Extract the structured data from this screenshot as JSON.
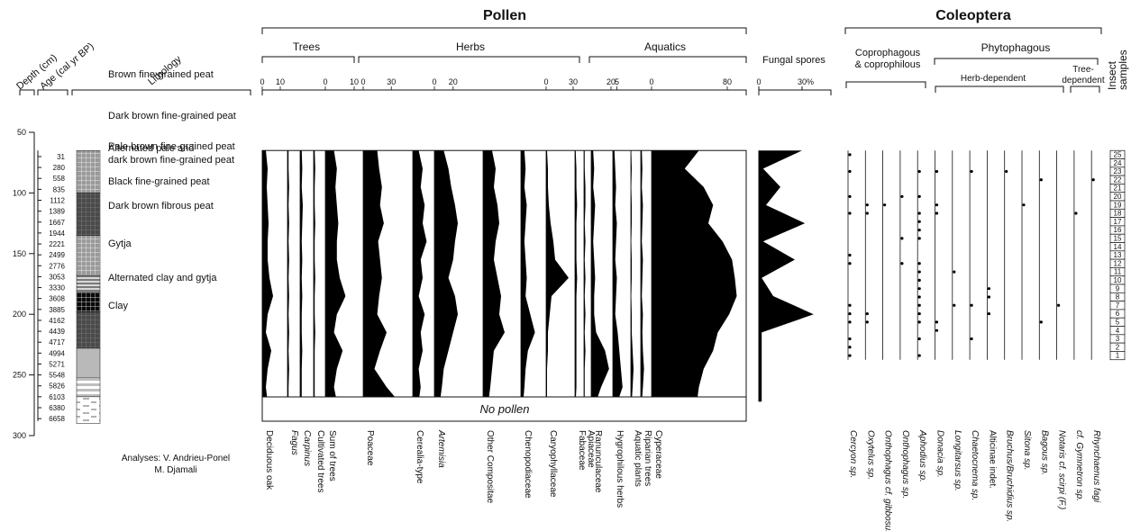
{
  "headers": {
    "pollen": "Pollen",
    "coleoptera": "Coleoptera",
    "trees": "Trees",
    "herbs": "Herbs",
    "aquatics": "Aquatics",
    "fungal": "Fungal spores",
    "coprophagous": "Coprophagous",
    "coprophilous": "& coprophilous",
    "phytophagous": "Phytophagous",
    "herb_dependent": "Herb-dependent",
    "tree_dependent_1": "Tree-",
    "tree_dependent_2": "dependent",
    "insect_1": "Insect",
    "insect_2": "samples",
    "depth": "Depth (cm)",
    "age": "Age (cal yr BP)",
    "lithology": "Lithology",
    "no_pollen": "No pollen",
    "analyses_1": "Analyses: V. Andrieu-Ponel",
    "analyses_2": "M. Djamali"
  },
  "chart_data": {
    "type": "area",
    "title": "",
    "ylabel": "Depth (cm)",
    "ylim": [
      50,
      300
    ],
    "depth_ticks": [
      50,
      100,
      150,
      200,
      250,
      300
    ],
    "pollen_depth_range": [
      65,
      272
    ],
    "age_depths": [
      70,
      79,
      88,
      97,
      106,
      115,
      124,
      133,
      142,
      151,
      160,
      169,
      178,
      187,
      196,
      205,
      214,
      223,
      232,
      241,
      250,
      259,
      268,
      277,
      286
    ],
    "ages": [
      "31",
      "280",
      "558",
      "835",
      "1112",
      "1389",
      "1667",
      "1944",
      "2221",
      "2499",
      "2776",
      "3053",
      "3330",
      "3608",
      "3885",
      "4162",
      "4439",
      "4717",
      "4994",
      "5271",
      "5548",
      "5826",
      "6103",
      "6380",
      "6658"
    ],
    "lithology": [
      {
        "label": "Brown fine-grained peat",
        "top": 65,
        "bottom": 100,
        "pattern": "grid-light"
      },
      {
        "label": "Dark brown fine-grained peat",
        "top": 100,
        "bottom": 135,
        "pattern": "grid-dark"
      },
      {
        "label": "Pale brown fine-grained peat",
        "top": 135,
        "bottom": 168,
        "pattern": "grid-light"
      },
      {
        "label": "Alternated pale and dark brown fine-grained peat",
        "top": 168,
        "bottom": 182,
        "pattern": "alternating"
      },
      {
        "label": "Black fine-grained peat",
        "top": 182,
        "bottom": 198,
        "pattern": "grid-black"
      },
      {
        "label": "Dark brown fibrous peat",
        "top": 198,
        "bottom": 228,
        "pattern": "grid-dark"
      },
      {
        "label": "Gytja",
        "top": 228,
        "bottom": 252,
        "pattern": "grey"
      },
      {
        "label": "Alternated clay and gytja",
        "top": 252,
        "bottom": 268,
        "pattern": "clay-gytja"
      },
      {
        "label": "Clay",
        "top": 268,
        "bottom": 290,
        "pattern": "clay"
      }
    ],
    "profile_depths": [
      65,
      80,
      95,
      110,
      125,
      140,
      155,
      170,
      185,
      200,
      215,
      230,
      245,
      260,
      272
    ],
    "pollen_taxa": [
      {
        "name": "Deciduous oak",
        "italic": false,
        "scale_ticks": [
          "0",
          "10"
        ],
        "scale_max": 10,
        "max": 10,
        "values": [
          2,
          3,
          2.5,
          3,
          3.5,
          3,
          3,
          4,
          6,
          3,
          2,
          5,
          3,
          2,
          3
        ]
      },
      {
        "name": "Fagus",
        "italic": true,
        "scale_ticks": [],
        "scale_max": 0,
        "max": 1,
        "values": [
          0.2,
          0.2,
          0.3,
          0.2,
          0.3,
          0.2,
          0.3,
          0.2,
          0.3,
          0.2,
          0.3,
          0.2,
          0.3,
          0.2,
          0.2
        ]
      },
      {
        "name": "Carpinus",
        "italic": true,
        "scale_ticks": [],
        "scale_max": 0,
        "max": 1,
        "values": [
          0.3,
          0.4,
          0.3,
          0.5,
          0.4,
          0.3,
          0.4,
          0.3,
          0.4,
          0.3,
          0.3,
          0.4,
          0.3,
          0.3,
          0.3
        ]
      },
      {
        "name": "Cultivated trees",
        "italic": false,
        "scale_ticks": [],
        "scale_max": 0,
        "max": 1,
        "values": [
          0.2,
          0.3,
          0.2,
          0.2,
          0.3,
          0.2,
          0.2,
          0.3,
          0.2,
          0.2,
          0.3,
          0.2,
          0.2,
          0.2,
          0.2
        ]
      },
      {
        "name": "Sum of trees",
        "italic": false,
        "scale_ticks": [
          "0",
          "10"
        ],
        "scale_max": 10,
        "max": 10,
        "values": [
          3,
          4,
          3.5,
          4,
          4.5,
          4,
          4,
          5,
          7,
          4,
          3,
          6,
          4,
          3,
          4
        ]
      },
      {
        "name": "Poaceae",
        "italic": false,
        "scale_ticks": [
          "0",
          "30"
        ],
        "scale_max": 30,
        "max": 50,
        "values": [
          15,
          17,
          20,
          18,
          22,
          16,
          18,
          20,
          17,
          15,
          25,
          18,
          12,
          25,
          38
        ]
      },
      {
        "name": "Cerealia-type",
        "italic": false,
        "scale_ticks": [],
        "scale_max": 0,
        "max": 10,
        "values": [
          3,
          5,
          4,
          6,
          5,
          7,
          4,
          5,
          3,
          6,
          4,
          5,
          3,
          4,
          3
        ]
      },
      {
        "name": "Artemisia",
        "italic": true,
        "scale_ticks": [
          "0",
          "20"
        ],
        "scale_max": 20,
        "max": 50,
        "values": [
          10,
          15,
          18,
          22,
          25,
          22,
          20,
          15,
          22,
          25,
          20,
          15,
          10,
          8,
          6
        ]
      },
      {
        "name": "Other Compositae",
        "italic": false,
        "scale_ticks": [],
        "scale_max": 0,
        "max": 20,
        "values": [
          5,
          7,
          6,
          8,
          9,
          7,
          6,
          8,
          10,
          9,
          12,
          6,
          5,
          4,
          3
        ]
      },
      {
        "name": "Chenopodiaceae",
        "italic": false,
        "scale_ticks": [],
        "scale_max": 0,
        "max": 20,
        "values": [
          3,
          4,
          3,
          5,
          4,
          3,
          4,
          5,
          4,
          8,
          12,
          6,
          4,
          3,
          2
        ]
      },
      {
        "name": "Caryophyllaceae",
        "italic": false,
        "scale_ticks": [
          "0",
          "30"
        ],
        "scale_max": 30,
        "max": 30,
        "values": [
          1,
          2,
          2,
          3,
          5,
          8,
          10,
          25,
          6,
          4,
          2,
          2,
          1,
          1,
          1
        ]
      },
      {
        "name": "Fabaceae",
        "italic": false,
        "scale_ticks": [],
        "scale_max": 0,
        "max": 5,
        "values": [
          0.5,
          1,
          1,
          1.5,
          1,
          1,
          1,
          1.5,
          1,
          1,
          1,
          1,
          1,
          1,
          0.5
        ]
      },
      {
        "name": "Apiaceae",
        "italic": false,
        "scale_ticks": [],
        "scale_max": 0,
        "max": 5,
        "values": [
          0.5,
          0.5,
          1,
          1,
          0.5,
          1,
          0.5,
          1,
          0.5,
          1,
          0.5,
          1,
          0.5,
          0.5,
          0.5
        ]
      },
      {
        "name": "Ranunculaceae",
        "italic": false,
        "scale_ticks": [
          "20"
        ],
        "scale_max": 20,
        "max": 20,
        "values": [
          2,
          3,
          2,
          4,
          3,
          2,
          3,
          4,
          3,
          3,
          5,
          14,
          18,
          10,
          5
        ]
      },
      {
        "name": "Hygrophilous herbs",
        "italic": false,
        "scale_ticks": [
          "5"
        ],
        "scale_max": 5,
        "max": 20,
        "values": [
          2,
          3,
          4,
          3,
          5,
          4,
          3,
          5,
          4,
          3,
          6,
          8,
          10,
          12,
          6
        ]
      },
      {
        "name": "Aquatic plants",
        "italic": false,
        "scale_ticks": [],
        "scale_max": 0,
        "max": 10,
        "values": [
          0.5,
          1,
          0.5,
          1,
          1,
          0.5,
          1,
          1,
          0.5,
          1,
          1,
          2,
          3,
          2,
          1
        ]
      },
      {
        "name": "Riparian trees",
        "italic": false,
        "scale_ticks": [],
        "scale_max": 0,
        "max": 10,
        "values": [
          1,
          1.5,
          1,
          2,
          1.5,
          1,
          2,
          1.5,
          1,
          2,
          1.5,
          2,
          3,
          2,
          1
        ]
      },
      {
        "name": "Cyperaceae",
        "italic": false,
        "scale_ticks": [
          "0",
          "80"
        ],
        "scale_max": 80,
        "max": 100,
        "values": [
          50,
          35,
          55,
          65,
          60,
          75,
          85,
          88,
          90,
          82,
          70,
          65,
          55,
          50,
          48
        ]
      }
    ],
    "fungal_spores": {
      "name": "Fungal spores",
      "scale_ticks": [
        "0",
        "30%"
      ],
      "scale_max": 30,
      "max": 50,
      "values": [
        30,
        3,
        15,
        5,
        32,
        3,
        25,
        2,
        10,
        38,
        2,
        2,
        2,
        2,
        2
      ]
    },
    "coleoptera_taxa": [
      {
        "name": "Cercyon sp.",
        "italic": true
      },
      {
        "name": "Oxytelus sp.",
        "italic": true
      },
      {
        "name": "Onthophagus cf. gibbosus",
        "italic": true
      },
      {
        "name": "Onthophagus sp.",
        "italic": true
      },
      {
        "name": "Aphodius sp.",
        "italic": true
      },
      {
        "name": "Donacia sp.",
        "italic": true
      },
      {
        "name": "Longitarsus sp.",
        "italic": true
      },
      {
        "name": "Chaetocnema sp.",
        "italic": true
      },
      {
        "name": "Alticinae indet.",
        "italic": false
      },
      {
        "name": "Bruchus/Bruchidius sp.",
        "italic": true
      },
      {
        "name": "Sitona sp.",
        "italic": true
      },
      {
        "name": "Bagous sp.",
        "italic": true
      },
      {
        "name": "Notaris cf. scirpi (F.)",
        "italic": true
      },
      {
        "name": "cf. Gymnetron sp.",
        "italic": true
      },
      {
        "name": "Rhynchaenus fagi",
        "italic": true
      }
    ],
    "insect_samples": [
      "25",
      "24",
      "23",
      "22",
      "21",
      "20",
      "19",
      "18",
      "17",
      "16",
      "15",
      "14",
      "13",
      "12",
      "11",
      "10",
      "9",
      "8",
      "7",
      "6",
      "5",
      "4",
      "3",
      "2",
      "1"
    ],
    "coleoptera_occurrences": [
      [
        25,
        0
      ],
      [
        23,
        0
      ],
      [
        23,
        4
      ],
      [
        23,
        5
      ],
      [
        23,
        7
      ],
      [
        23,
        9
      ],
      [
        22,
        11
      ],
      [
        22,
        14
      ],
      [
        20,
        0
      ],
      [
        20,
        3
      ],
      [
        20,
        4
      ],
      [
        19,
        1
      ],
      [
        19,
        2
      ],
      [
        19,
        5
      ],
      [
        19,
        10
      ],
      [
        18,
        0
      ],
      [
        18,
        1
      ],
      [
        18,
        4
      ],
      [
        18,
        5
      ],
      [
        18,
        13
      ],
      [
        17,
        4
      ],
      [
        16,
        4
      ],
      [
        15,
        3
      ],
      [
        15,
        4
      ],
      [
        13,
        0
      ],
      [
        12,
        0
      ],
      [
        12,
        3
      ],
      [
        12,
        4
      ],
      [
        11,
        6
      ],
      [
        11,
        4
      ],
      [
        10,
        4
      ],
      [
        9,
        4
      ],
      [
        9,
        8
      ],
      [
        8,
        4
      ],
      [
        8,
        8
      ],
      [
        7,
        0
      ],
      [
        7,
        4
      ],
      [
        7,
        6
      ],
      [
        7,
        7
      ],
      [
        7,
        12
      ],
      [
        6,
        0
      ],
      [
        6,
        1
      ],
      [
        6,
        4
      ],
      [
        6,
        8
      ],
      [
        5,
        0
      ],
      [
        5,
        1
      ],
      [
        5,
        4
      ],
      [
        5,
        5
      ],
      [
        5,
        11
      ],
      [
        4,
        5
      ],
      [
        3,
        0
      ],
      [
        3,
        4
      ],
      [
        3,
        7
      ],
      [
        2,
        0
      ],
      [
        1,
        0
      ],
      [
        1,
        4
      ]
    ]
  }
}
